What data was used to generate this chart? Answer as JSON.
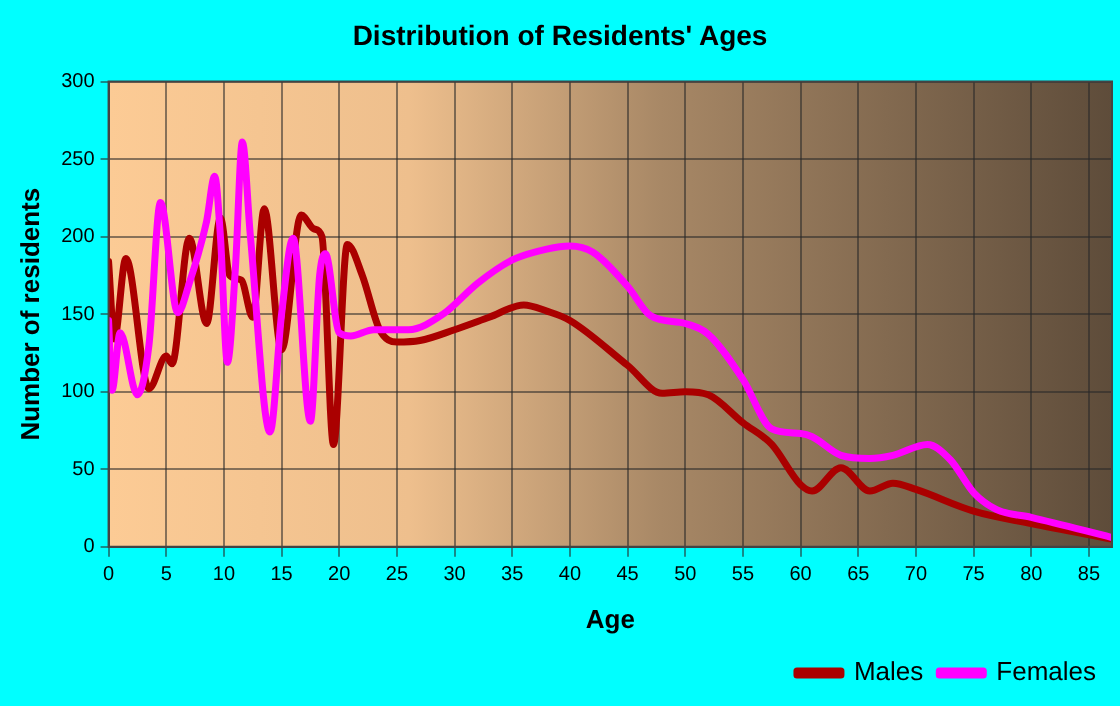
{
  "chart_data": {
    "type": "line",
    "title": "Distribution of Residents' Ages",
    "xlabel": "Age",
    "ylabel": "Number of residents",
    "xlim": [
      0,
      87
    ],
    "xticks": [
      0,
      5,
      10,
      15,
      20,
      25,
      30,
      35,
      40,
      45,
      50,
      55,
      60,
      65,
      70,
      75,
      80,
      85
    ],
    "ylim": [
      0,
      300
    ],
    "yticks": [
      0,
      50,
      100,
      150,
      200,
      250,
      300
    ],
    "grid": true,
    "legend": "bottom right",
    "marker": "none",
    "line_style": "solid",
    "series": [
      {
        "name": "Males",
        "color": "#aa0000",
        "x": [
          0,
          0.5,
          1.5,
          3.5,
          5,
          5.5,
          7,
          8.5,
          9.7,
          10.5,
          11.5,
          12.5,
          13.5,
          15,
          16.7,
          17.8,
          18.5,
          19.5,
          20.7,
          22,
          23.5,
          25,
          27,
          30,
          33,
          36,
          38,
          40,
          45,
          48,
          50,
          52,
          55,
          57.5,
          60,
          61,
          63.5,
          66,
          68,
          70,
          75,
          80,
          87
        ],
        "values": [
          184,
          134,
          186,
          102,
          123,
          118,
          199,
          144,
          212,
          175,
          172,
          148,
          218,
          127,
          214,
          205,
          200,
          66,
          195,
          175,
          140,
          132,
          133,
          140,
          148,
          156,
          152,
          146,
          117,
          99,
          100,
          98,
          80,
          66,
          40,
          36,
          51,
          36,
          41,
          37,
          23,
          15,
          5
        ]
      },
      {
        "name": "Females",
        "color": "#ff00ff",
        "x": [
          0,
          0.3,
          1,
          2.5,
          3.5,
          4.5,
          6,
          7,
          8.5,
          9.2,
          9.7,
          10.3,
          11,
          11.6,
          12.3,
          14,
          15,
          16,
          17.5,
          18.3,
          18.8,
          20,
          21,
          23,
          26,
          29,
          32,
          35,
          38,
          40,
          42,
          45,
          47,
          50,
          52,
          55,
          57.5,
          60,
          61,
          63.5,
          66,
          68,
          71,
          73,
          75,
          77,
          80,
          87
        ],
        "values": [
          146,
          101,
          138,
          98,
          130,
          222,
          151,
          170,
          210,
          239,
          200,
          119,
          180,
          261,
          200,
          74,
          150,
          199,
          81,
          175,
          189,
          138,
          136,
          140,
          140,
          150,
          170,
          185,
          192,
          194,
          190,
          168,
          149,
          144,
          137,
          108,
          76,
          73,
          71,
          59,
          57,
          59,
          66,
          56,
          35,
          24,
          19,
          6
        ]
      }
    ]
  }
}
